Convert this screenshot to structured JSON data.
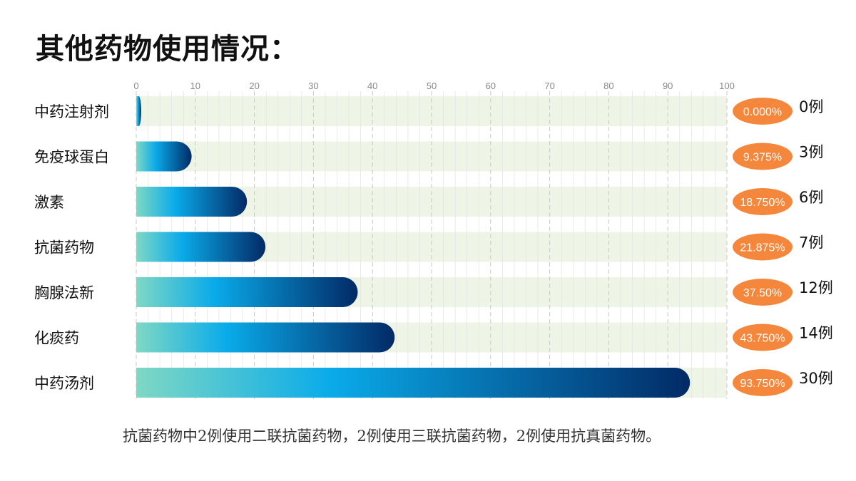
{
  "title": "其他药物使用情况：",
  "footnote": "抗菌药物中2例使用二联抗菌药物，2例使用三联抗菌药物，2例使用抗真菌药物。",
  "colors": {
    "track": "#eef5e6",
    "bar_start": "#7fd8c4",
    "bar_mid": "#0aabea",
    "bar_end": "#022a66",
    "badge": "#f5873c",
    "grid": "#c8c8c8"
  },
  "chart_data": {
    "type": "bar",
    "orientation": "horizontal",
    "xlim": [
      0,
      100
    ],
    "xticks": [
      0,
      10,
      20,
      30,
      40,
      50,
      60,
      70,
      80,
      90,
      100
    ],
    "grid": true,
    "categories": [
      "中药注射剂",
      "免疫球蛋白",
      "激素",
      "抗菌药物",
      "胸腺法新",
      "化痰药",
      "中药汤剂"
    ],
    "values": [
      0.0,
      9.375,
      18.75,
      21.875,
      37.5,
      43.75,
      93.75
    ],
    "value_labels": [
      "0.000%",
      "9.375%",
      "18.750%",
      "21.875%",
      "37.50%",
      "43.750%",
      "93.750%"
    ],
    "count_labels": [
      "0例",
      "3例",
      "6例",
      "7例",
      "12例",
      "14例",
      "30例"
    ]
  }
}
